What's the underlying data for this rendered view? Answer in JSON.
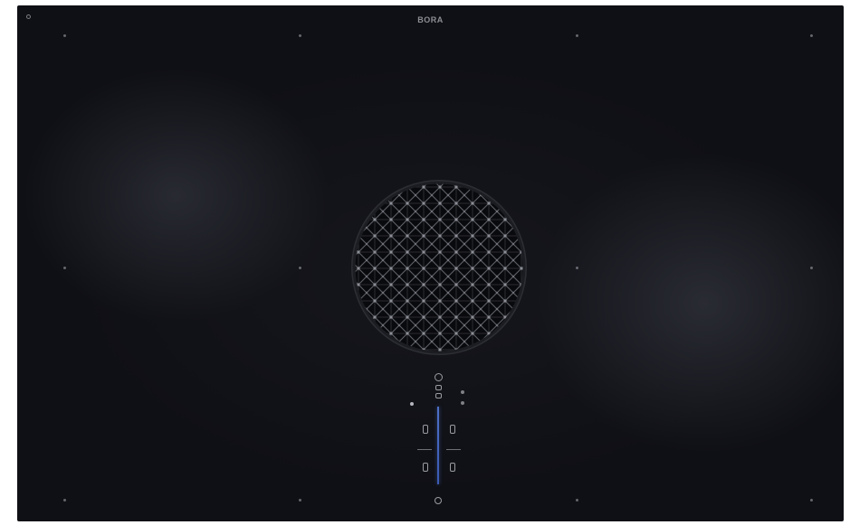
{
  "brand": {
    "logo_text": "BORA"
  },
  "colors": {
    "surface": "#101116",
    "accent": "#4d6fc7",
    "glyph": "#9a9ca3"
  },
  "icons": {
    "power": "power-icon",
    "vent": "extractor-vent-grille-icon",
    "fan": "fan-icon",
    "timer": "timer-icon",
    "minus": "minus-icon",
    "plus": "plus-icon"
  }
}
